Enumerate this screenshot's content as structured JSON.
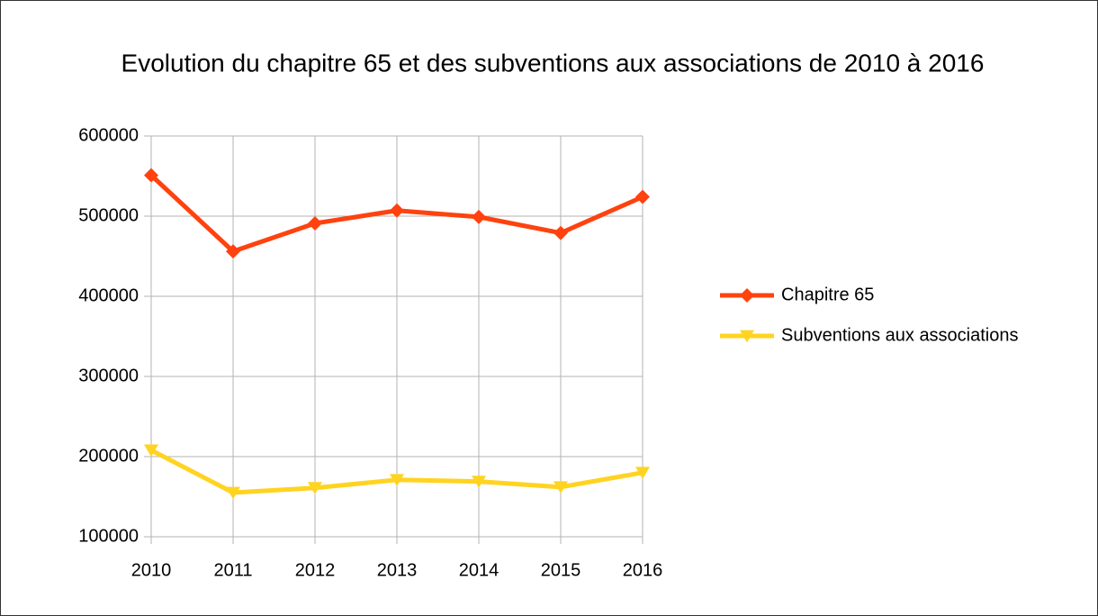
{
  "chart_data": {
    "type": "line",
    "title": "Evolution du chapitre 65 et des subventions aux associations de 2010 à 2016",
    "categories": [
      "2010",
      "2011",
      "2012",
      "2013",
      "2014",
      "2015",
      "2016"
    ],
    "series": [
      {
        "name": "Chapitre 65",
        "color": "#ff420e",
        "marker": "diamond",
        "values": [
          551000,
          456000,
          491000,
          507000,
          499000,
          479000,
          524000
        ]
      },
      {
        "name": "Subventions aux associations",
        "color": "#ffd320",
        "marker": "triangle-down",
        "values": [
          208000,
          155000,
          161000,
          171000,
          169000,
          162000,
          180000
        ]
      }
    ],
    "ylim": [
      100000,
      600000
    ],
    "yticks": [
      100000,
      200000,
      300000,
      400000,
      500000,
      600000
    ],
    "grid": true,
    "legend": "right"
  }
}
